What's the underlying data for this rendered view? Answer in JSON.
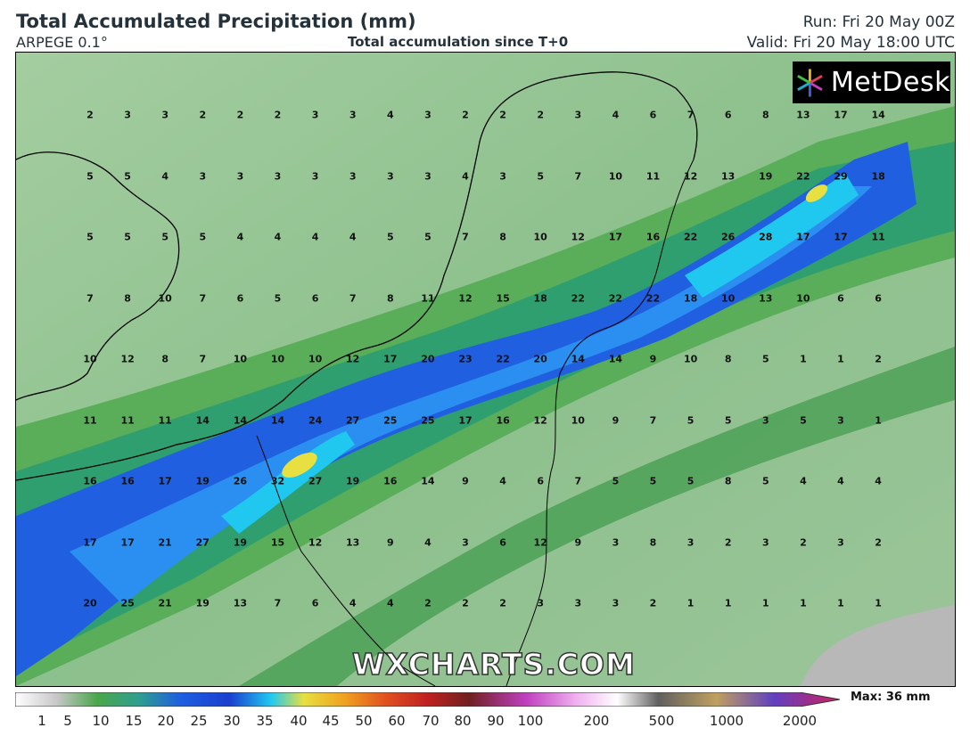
{
  "header": {
    "title": "Total Accumulated Precipitation (mm)",
    "model": "ARPEGE 0.1°",
    "subtitle": "Total accumulation since T+0",
    "run": "Run: Fri 20 May 00Z",
    "valid": "Valid: Fri 20 May 18:00 UTC"
  },
  "logo": {
    "text": "MetDesk",
    "icon": "metdesk-burst-icon"
  },
  "watermark": "WXCHARTS.COM",
  "colorbar": {
    "max_label": "Max: 36 mm",
    "ticks": [
      "1",
      "5",
      "10",
      "15",
      "20",
      "25",
      "30",
      "35",
      "40",
      "45",
      "50",
      "60",
      "70",
      "80",
      "90",
      "100",
      "200",
      "500",
      "1000",
      "2000"
    ]
  },
  "grid_values": [
    [
      "2",
      "3",
      "3",
      "2",
      "2",
      "2",
      "3",
      "3",
      "4",
      "3",
      "2",
      "2",
      "2",
      "3",
      "4",
      "6",
      "7",
      "6",
      "8",
      "13",
      "17",
      "14"
    ],
    [
      "5",
      "5",
      "4",
      "3",
      "3",
      "3",
      "3",
      "3",
      "3",
      "3",
      "4",
      "3",
      "5",
      "7",
      "10",
      "11",
      "12",
      "13",
      "19",
      "22",
      "29",
      "18"
    ],
    [
      "5",
      "5",
      "5",
      "5",
      "4",
      "4",
      "4",
      "4",
      "5",
      "5",
      "7",
      "8",
      "10",
      "12",
      "17",
      "16",
      "22",
      "26",
      "28",
      "17",
      "17",
      "11"
    ],
    [
      "7",
      "8",
      "10",
      "7",
      "6",
      "5",
      "6",
      "7",
      "8",
      "11",
      "12",
      "15",
      "18",
      "22",
      "22",
      "22",
      "18",
      "10",
      "13",
      "10",
      "6",
      "6"
    ],
    [
      "10",
      "12",
      "8",
      "7",
      "10",
      "10",
      "10",
      "12",
      "17",
      "20",
      "23",
      "22",
      "20",
      "14",
      "14",
      "9",
      "10",
      "8",
      "5",
      "1",
      "1",
      "2"
    ],
    [
      "11",
      "11",
      "11",
      "14",
      "14",
      "14",
      "24",
      "27",
      "25",
      "25",
      "17",
      "16",
      "12",
      "10",
      "9",
      "7",
      "5",
      "5",
      "3",
      "5",
      "3",
      "1"
    ],
    [
      "16",
      "16",
      "17",
      "19",
      "26",
      "32",
      "27",
      "19",
      "16",
      "14",
      "9",
      "4",
      "6",
      "7",
      "5",
      "5",
      "5",
      "8",
      "5",
      "4",
      "4",
      "4"
    ],
    [
      "17",
      "17",
      "21",
      "27",
      "19",
      "15",
      "12",
      "13",
      "9",
      "4",
      "3",
      "6",
      "12",
      "9",
      "3",
      "8",
      "3",
      "2",
      "3",
      "2",
      "3",
      "2"
    ],
    [
      "20",
      "25",
      "21",
      "19",
      "13",
      "7",
      "6",
      "4",
      "4",
      "2",
      "2",
      "2",
      "3",
      "3",
      "3",
      "2",
      "1",
      "1",
      "1",
      "1",
      "1",
      "1"
    ]
  ],
  "colors": {
    "light_green": "#8cc08c",
    "mid_green": "#4aa64a",
    "dark_green": "#2e8b3a",
    "teal": "#2f9f8f",
    "blue": "#1f5fe0",
    "deep_blue": "#1a3fd0",
    "cyan": "#20c8f0",
    "yellow": "#e8e040",
    "grey": "#b8b8b8"
  }
}
